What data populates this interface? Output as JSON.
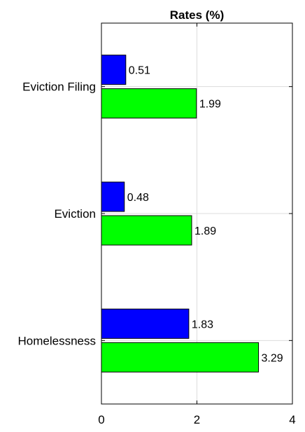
{
  "chart_data": {
    "type": "bar",
    "orientation": "horizontal",
    "title": "Rates (%)",
    "xlabel": "",
    "ylabel": "",
    "categories": [
      "Eviction Filing",
      "Eviction",
      "Homelessness"
    ],
    "series": [
      {
        "values": [
          0.51,
          0.48,
          1.83
        ],
        "color": "#0000ff"
      },
      {
        "values": [
          1.99,
          1.89,
          3.29
        ],
        "color": "#00ff00"
      }
    ],
    "data_labels": [
      [
        "0.51",
        "0.48",
        "1.83"
      ],
      [
        "1.99",
        "1.89",
        "3.29"
      ]
    ],
    "xlim": [
      0,
      4
    ],
    "xticks": [
      0,
      2,
      4
    ],
    "xtick_labels": [
      "0",
      "2",
      "4"
    ],
    "grid": true,
    "legend": "none"
  }
}
